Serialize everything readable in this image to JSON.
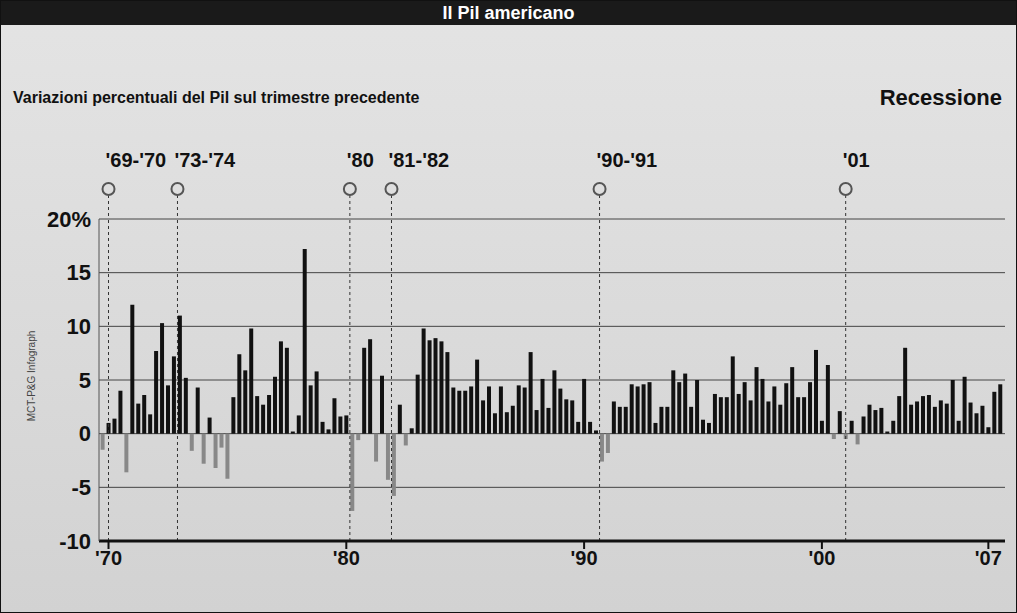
{
  "chart_data": {
    "type": "bar",
    "title": "Il Pil americano",
    "subtitle": "Variazioni percentuali del Pil sul trimestre precedente",
    "annotations": [
      "Recessione"
    ],
    "credit": "MCT-P&G Infograph",
    "recessions": [
      {
        "label": "'69-'70",
        "x": 1970.0
      },
      {
        "label": "'73-'74",
        "x": 1972.9
      },
      {
        "label": "'80",
        "x": 1980.15
      },
      {
        "label": "'81-'82",
        "x": 1981.9
      },
      {
        "label": "'90-'91",
        "x": 1990.65
      },
      {
        "label": "'01",
        "x": 2001.0
      }
    ],
    "x": [
      1969.75,
      1970,
      1970.25,
      1970.5,
      1970.75,
      1971,
      1971.25,
      1971.5,
      1971.75,
      1972,
      1972.25,
      1972.5,
      1972.75,
      1973,
      1973.25,
      1973.5,
      1973.75,
      1974,
      1974.25,
      1974.5,
      1974.75,
      1975,
      1975.25,
      1975.5,
      1975.75,
      1976,
      1976.25,
      1976.5,
      1976.75,
      1977,
      1977.25,
      1977.5,
      1977.75,
      1978,
      1978.25,
      1978.5,
      1978.75,
      1979,
      1979.25,
      1979.5,
      1979.75,
      1980,
      1980.25,
      1980.5,
      1980.75,
      1981,
      1981.25,
      1981.5,
      1981.75,
      1982,
      1982.25,
      1982.5,
      1982.75,
      1983,
      1983.25,
      1983.5,
      1983.75,
      1984,
      1984.25,
      1984.5,
      1984.75,
      1985,
      1985.25,
      1985.5,
      1985.75,
      1986,
      1986.25,
      1986.5,
      1986.75,
      1987,
      1987.25,
      1987.5,
      1987.75,
      1988,
      1988.25,
      1988.5,
      1988.75,
      1989,
      1989.25,
      1989.5,
      1989.75,
      1990,
      1990.25,
      1990.5,
      1990.75,
      1991,
      1991.25,
      1991.5,
      1991.75,
      1992,
      1992.25,
      1992.5,
      1992.75,
      1993,
      1993.25,
      1993.5,
      1993.75,
      1994,
      1994.25,
      1994.5,
      1994.75,
      1995,
      1995.25,
      1995.5,
      1995.75,
      1996,
      1996.25,
      1996.5,
      1996.75,
      1997,
      1997.25,
      1997.5,
      1997.75,
      1998,
      1998.25,
      1998.5,
      1998.75,
      1999,
      1999.25,
      1999.5,
      1999.75,
      2000,
      2000.25,
      2000.5,
      2000.75,
      2001,
      2001.25,
      2001.5,
      2001.75,
      2002,
      2002.25,
      2002.5,
      2002.75,
      2003,
      2003.25,
      2003.5,
      2003.75,
      2004,
      2004.25,
      2004.5,
      2004.75,
      2005,
      2005.25,
      2005.5,
      2005.75,
      2006,
      2006.25,
      2006.5,
      2006.75,
      2007,
      2007.25,
      2007.5
    ],
    "values": [
      -1.5,
      1.0,
      1.4,
      4.0,
      -3.6,
      12.0,
      2.8,
      3.6,
      1.8,
      7.7,
      10.3,
      4.5,
      7.2,
      11.0,
      5.2,
      -1.6,
      4.3,
      -2.8,
      1.5,
      -3.2,
      -1.3,
      -4.2,
      3.4,
      7.4,
      5.9,
      9.8,
      3.5,
      2.7,
      3.6,
      5.3,
      8.6,
      8.0,
      0.2,
      1.7,
      17.2,
      4.5,
      5.8,
      1.1,
      0.4,
      3.3,
      1.6,
      1.7,
      -7.2,
      -0.6,
      8.0,
      8.8,
      -2.6,
      5.4,
      -4.3,
      -5.8,
      2.7,
      -1.1,
      0.5,
      5.5,
      9.8,
      8.7,
      8.9,
      8.6,
      7.6,
      4.3,
      4.0,
      4.0,
      4.4,
      6.9,
      3.1,
      4.4,
      1.9,
      4.4,
      2.0,
      2.6,
      4.5,
      4.3,
      7.6,
      2.2,
      5.1,
      2.4,
      5.9,
      4.2,
      3.2,
      3.1,
      1.1,
      5.1,
      1.1,
      0.3,
      -2.6,
      -1.8,
      3.0,
      2.5,
      2.5,
      4.6,
      4.4,
      4.6,
      4.8,
      1.0,
      2.5,
      2.5,
      5.9,
      4.8,
      5.6,
      2.5,
      5.0,
      1.3,
      1.0,
      3.7,
      3.4,
      3.4,
      7.2,
      3.7,
      4.8,
      3.1,
      6.2,
      5.1,
      3.0,
      4.4,
      2.7,
      4.7,
      6.2,
      3.4,
      3.4,
      4.8,
      7.8,
      1.2,
      6.4,
      -0.5,
      2.1,
      -0.5,
      1.2,
      -1.0,
      1.6,
      2.7,
      2.2,
      2.4,
      0.2,
      1.2,
      3.5,
      8.0,
      2.7,
      3.0,
      3.5,
      3.6,
      2.5,
      3.1,
      2.8,
      5.0,
      1.2,
      5.3,
      2.9,
      1.9,
      2.6,
      0.6,
      3.9,
      4.6
    ],
    "colors": [
      "#888888",
      "#111111",
      "#111111",
      "#111111",
      "#888888",
      "#111111",
      "#111111",
      "#111111",
      "#111111",
      "#111111",
      "#111111",
      "#111111",
      "#111111",
      "#111111",
      "#111111",
      "#888888",
      "#111111",
      "#888888",
      "#111111",
      "#888888",
      "#888888",
      "#888888",
      "#111111",
      "#111111",
      "#111111",
      "#111111",
      "#111111",
      "#111111",
      "#111111",
      "#111111",
      "#111111",
      "#111111",
      "#111111",
      "#111111",
      "#111111",
      "#111111",
      "#111111",
      "#111111",
      "#111111",
      "#111111",
      "#111111",
      "#111111",
      "#888888",
      "#888888",
      "#111111",
      "#111111",
      "#888888",
      "#111111",
      "#888888",
      "#888888",
      "#111111",
      "#888888",
      "#111111",
      "#111111",
      "#111111",
      "#111111",
      "#111111",
      "#111111",
      "#111111",
      "#111111",
      "#111111",
      "#111111",
      "#111111",
      "#111111",
      "#111111",
      "#111111",
      "#111111",
      "#111111",
      "#111111",
      "#111111",
      "#111111",
      "#111111",
      "#111111",
      "#111111",
      "#111111",
      "#111111",
      "#111111",
      "#111111",
      "#111111",
      "#111111",
      "#111111",
      "#111111",
      "#111111",
      "#111111",
      "#888888",
      "#888888",
      "#111111",
      "#111111",
      "#111111",
      "#111111",
      "#111111",
      "#111111",
      "#111111",
      "#111111",
      "#111111",
      "#111111",
      "#111111",
      "#111111",
      "#111111",
      "#111111",
      "#111111",
      "#111111",
      "#111111",
      "#111111",
      "#111111",
      "#111111",
      "#111111",
      "#111111",
      "#111111",
      "#111111",
      "#111111",
      "#111111",
      "#111111",
      "#111111",
      "#111111",
      "#111111",
      "#111111",
      "#111111",
      "#111111",
      "#111111",
      "#111111",
      "#111111",
      "#111111",
      "#888888",
      "#111111",
      "#888888",
      "#111111",
      "#888888",
      "#111111",
      "#111111",
      "#111111",
      "#111111",
      "#111111",
      "#111111",
      "#111111",
      "#111111",
      "#111111",
      "#111111",
      "#111111",
      "#111111",
      "#111111",
      "#111111",
      "#111111",
      "#111111",
      "#111111",
      "#111111",
      "#111111",
      "#111111",
      "#111111",
      "#111111",
      "#111111",
      "#111111"
    ],
    "xlim": [
      1969.6,
      2007.7
    ],
    "xticks": [
      {
        "value": 1970,
        "label": "'70"
      },
      {
        "value": 1980,
        "label": "'80"
      },
      {
        "value": 1990,
        "label": "'90"
      },
      {
        "value": 2000,
        "label": "'00"
      },
      {
        "value": 2007,
        "label": "'07"
      }
    ],
    "ylim": [
      -10,
      20
    ],
    "yticks": [
      -10,
      -5,
      0,
      5,
      10,
      15,
      {
        "value": 20,
        "label": "20%"
      }
    ],
    "grid": true
  }
}
